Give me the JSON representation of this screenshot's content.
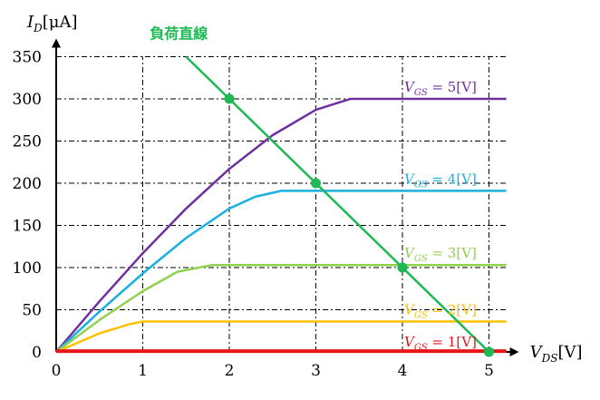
{
  "chart_data": {
    "type": "line",
    "title": "",
    "xlabel": {
      "var": "V",
      "sub": "DS",
      "unit": "[V]"
    },
    "ylabel": {
      "var": "I",
      "sub": "D",
      "unit": "[μA]"
    },
    "xlim": [
      0,
      5.2
    ],
    "ylim": [
      0,
      350
    ],
    "x_ticks": [
      "0",
      "1",
      "2",
      "3",
      "4",
      "5"
    ],
    "y_ticks": [
      "0",
      "50",
      "100",
      "150",
      "200",
      "250",
      "300",
      "350"
    ],
    "grid": true,
    "series": [
      {
        "name": "V_GS = 5[V]",
        "label_var": "V",
        "label_sub": "GS",
        "label_rest": " = 5[V]",
        "color": "#7030a0",
        "x": [
          0,
          0.5,
          1.0,
          1.5,
          2.0,
          2.5,
          3.0,
          3.4,
          5.2
        ],
        "y": [
          0,
          60,
          117,
          170,
          217,
          257,
          287,
          300,
          300
        ]
      },
      {
        "name": "V_GS = 4[V]",
        "label_var": "V",
        "label_sub": "GS",
        "label_rest": " = 4[V]",
        "color": "#1ab0e0",
        "x": [
          0,
          0.5,
          1.0,
          1.5,
          2.0,
          2.3,
          2.6,
          5.2
        ],
        "y": [
          0,
          48,
          93,
          135,
          170,
          184,
          191,
          191
        ]
      },
      {
        "name": "V_GS = 3[V]",
        "label_var": "V",
        "label_sub": "GS",
        "label_rest": " = 3[V]",
        "color": "#92d050",
        "x": [
          0,
          0.5,
          1.0,
          1.4,
          1.8,
          5.2
        ],
        "y": [
          0,
          38,
          72,
          95,
          103,
          103
        ]
      },
      {
        "name": "V_GS = 2[V]",
        "label_var": "V",
        "label_sub": "GS",
        "label_rest": " = 2[V]",
        "color": "#ffc000",
        "x": [
          0,
          0.5,
          0.85,
          1.0,
          5.2
        ],
        "y": [
          0,
          22,
          33,
          36,
          36
        ]
      },
      {
        "name": "V_GS = 1[V]",
        "label_var": "V",
        "label_sub": "GS",
        "label_rest": " = 1[V]",
        "color": "#e8151b",
        "x": [
          0,
          5.2
        ],
        "y": [
          1,
          1
        ]
      }
    ],
    "load_line": {
      "name": "負荷直線",
      "color": "#1db954",
      "x": [
        1.5,
        5.0
      ],
      "y": [
        350,
        0
      ],
      "points": [
        {
          "x": 2,
          "y": 300
        },
        {
          "x": 3,
          "y": 200
        },
        {
          "x": 4,
          "y": 100
        },
        {
          "x": 5,
          "y": 0
        }
      ]
    }
  }
}
